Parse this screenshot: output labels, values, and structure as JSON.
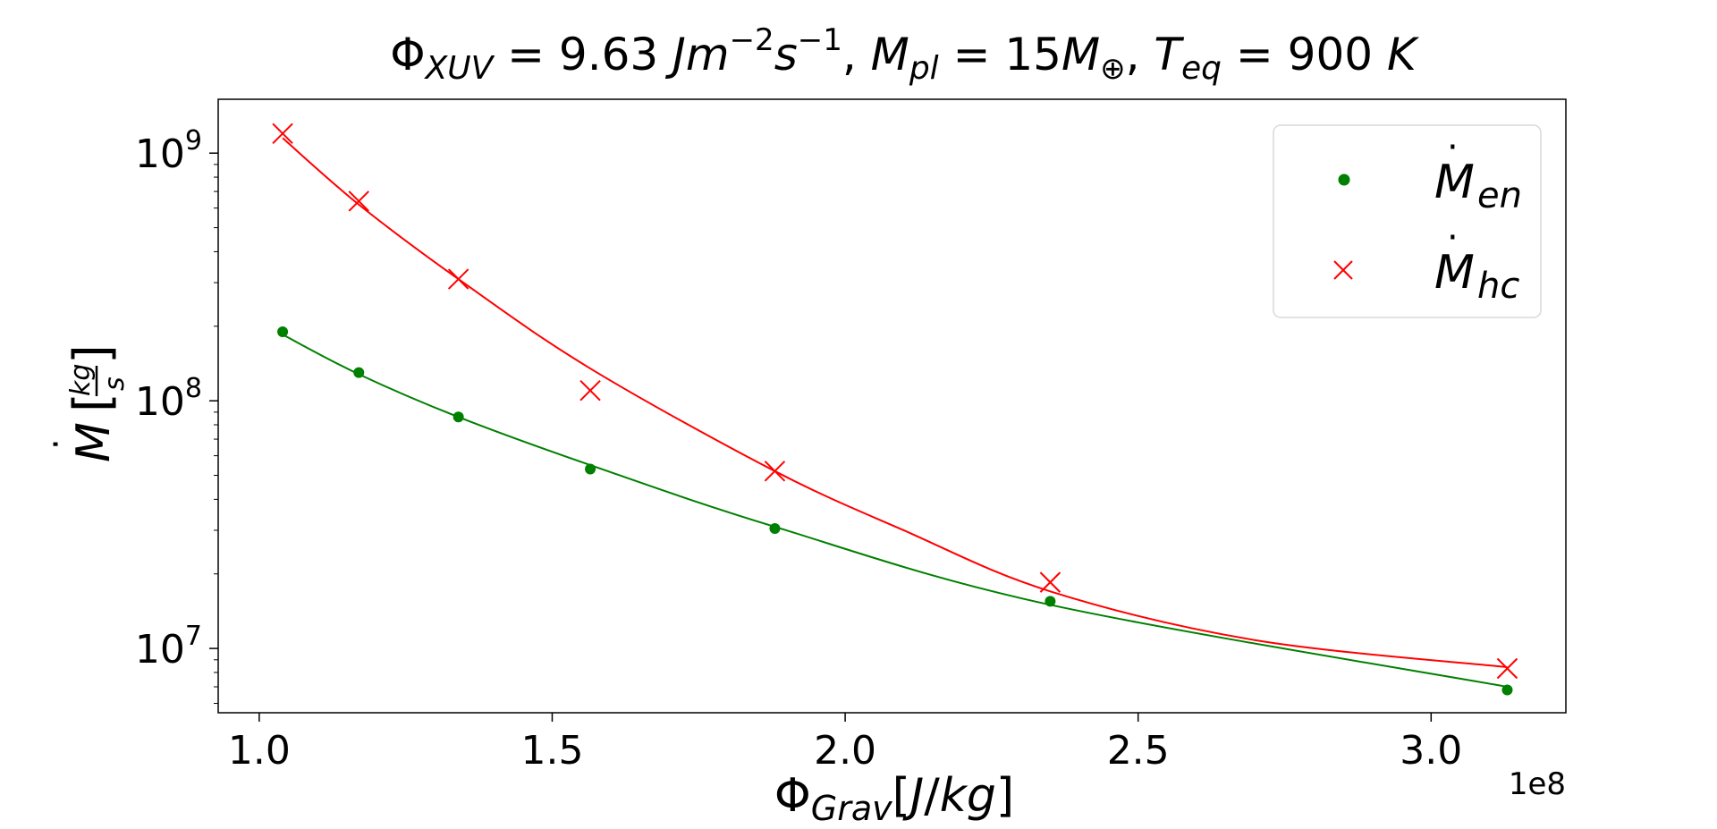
{
  "chart_data": {
    "type": "scatter",
    "title": "Φ_XUV = 9.63 Jm^-2 s^-1,  M_pl = 15M_⊕,  T_eq = 900 K",
    "xlabel": "Φ_Grav [J/kg]",
    "ylabel": "Ṁ [kg/s]",
    "x_offset_label": "1e8",
    "x_scale": "linear",
    "y_scale": "log",
    "xlim": [
      0.93,
      3.23
    ],
    "ylim": [
      5500000.0,
      1650000000.0
    ],
    "x_ticks": [
      1.0,
      1.5,
      2.0,
      2.5,
      3.0
    ],
    "x_tick_labels": [
      "1.0",
      "1.5",
      "2.0",
      "2.5",
      "3.0"
    ],
    "y_ticks": [
      10000000.0,
      100000000.0,
      1000000000.0
    ],
    "y_tick_labels": [
      {
        "base": "10",
        "exp": "7"
      },
      {
        "base": "10",
        "exp": "8"
      },
      {
        "base": "10",
        "exp": "9"
      }
    ],
    "grid": false,
    "legend_position": "upper right",
    "series": [
      {
        "name": "Ṁ_en",
        "marker": "dot",
        "color": "#008000",
        "x": [
          1.04,
          1.17,
          1.34,
          1.565,
          1.88,
          2.35,
          3.13
        ],
        "y": [
          190000000.0,
          130000000.0,
          86000000.0,
          53000000.0,
          30500000.0,
          15500000.0,
          6800000.0
        ],
        "fit": {
          "x": [
            1.04,
            1.17,
            1.34,
            1.565,
            1.88,
            2.35,
            3.13
          ],
          "y": [
            185000000.0,
            128000000.0,
            86000000.0,
            55000000.0,
            31000000.0,
            15000000.0,
            7000000.0
          ]
        }
      },
      {
        "name": "Ṁ_hc",
        "marker": "x",
        "color": "#ff0000",
        "x": [
          1.04,
          1.17,
          1.34,
          1.565,
          1.88,
          2.35,
          3.13
        ],
        "y": [
          1200000000.0,
          640000000.0,
          310000000.0,
          110000000.0,
          52000000.0,
          18500000.0,
          8300000.0
        ],
        "fit": {
          "x": [
            1.04,
            1.17,
            1.34,
            1.565,
            1.88,
            2.1,
            2.35,
            2.7,
            3.13
          ],
          "y": [
            1150000000.0,
            620000000.0,
            310000000.0,
            135000000.0,
            52000000.0,
            30000000.0,
            17000000.0,
            10800000.0,
            8400000.0
          ]
        }
      }
    ]
  }
}
